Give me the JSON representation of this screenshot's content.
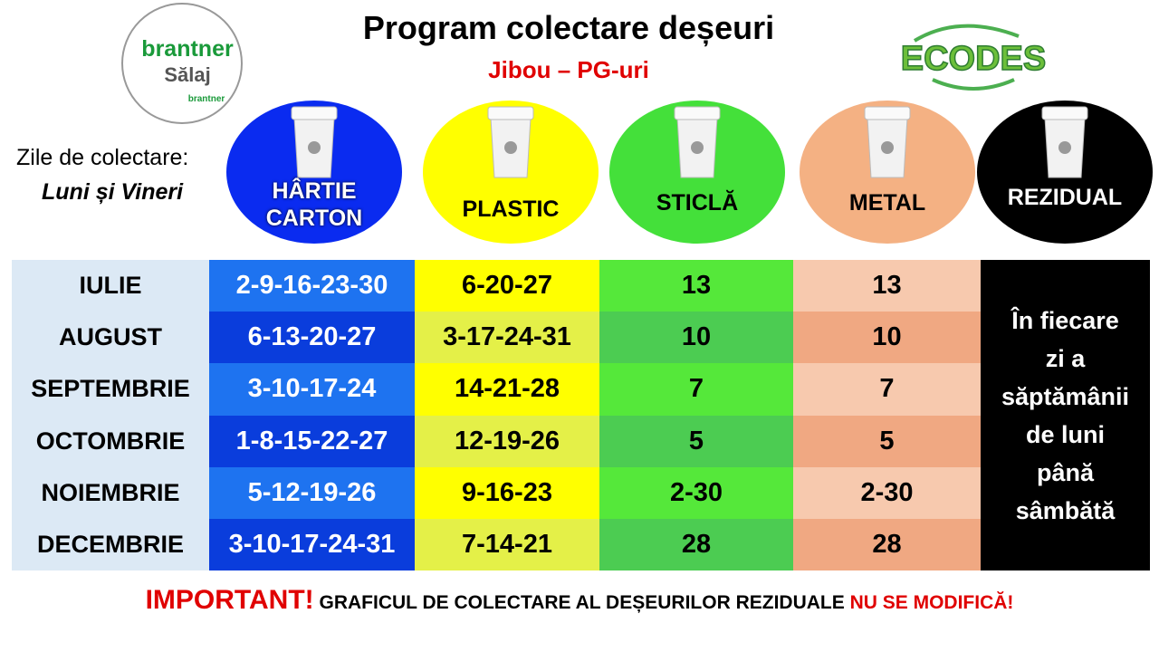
{
  "header": {
    "title": "Program colectare deșeuri",
    "subtitle": "Jibou – PG-uri"
  },
  "logo_left": {
    "brand": "brantner",
    "region": "Sălaj",
    "small": "brantner"
  },
  "logo_right": {
    "text": "ECODES"
  },
  "collection_days": {
    "label": "Zile de colectare:",
    "days": "Luni și Vineri"
  },
  "bins": [
    {
      "lines": [
        "HÂRTIE",
        "CARTON"
      ]
    },
    {
      "lines": [
        "PLASTIC"
      ]
    },
    {
      "lines": [
        "STICLĂ"
      ]
    },
    {
      "lines": [
        "METAL"
      ]
    },
    {
      "lines": [
        "REZIDUAL"
      ]
    }
  ],
  "table": {
    "rows": [
      [
        "IULIE",
        "2-9-16-23-30",
        "6-20-27",
        "13",
        "13"
      ],
      [
        "AUGUST",
        "6-13-20-27",
        "3-17-24-31",
        "10",
        "10"
      ],
      [
        "SEPTEMBRIE",
        "3-10-17-24",
        "14-21-28",
        "7",
        "7"
      ],
      [
        "OCTOMBRIE",
        "1-8-15-22-27",
        "12-19-26",
        "5",
        "5"
      ],
      [
        "NOIEMBRIE",
        "5-12-19-26",
        "9-16-23",
        "2-30",
        "2-30"
      ],
      [
        "DECEMBRIE",
        "3-10-17-24-31",
        "7-14-21",
        "28",
        "28"
      ]
    ],
    "residual_note": [
      "În fiecare",
      "zi a",
      "săptămânii",
      "de luni",
      "până",
      "sâmbătă"
    ]
  },
  "footer": {
    "important": "IMPORTANT!",
    "text": "GRAFICUL DE COLECTARE AL DEȘEURILOR REZIDUALE",
    "emphasis": "NU SE MODIFICĂ!"
  }
}
